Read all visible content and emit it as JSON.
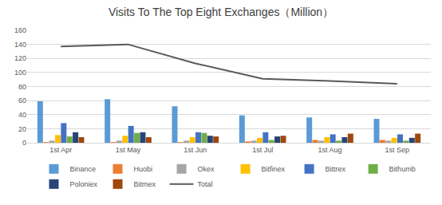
{
  "chart_data": {
    "type": "bar",
    "title": "Visits To The Top Eight Exchanges（Million）",
    "categories": [
      "1st Apr",
      "1st May",
      "1st Jun",
      "1st Jul",
      "1st Aug",
      "1st Sep"
    ],
    "series": [
      {
        "name": "Binance",
        "type": "bar",
        "color": "#5b9bd5",
        "values": [
          59,
          62,
          52,
          39,
          36,
          34
        ]
      },
      {
        "name": "Huobi",
        "type": "bar",
        "color": "#ed7d31",
        "values": [
          1,
          1,
          1,
          2,
          4,
          4
        ]
      },
      {
        "name": "Okex",
        "type": "bar",
        "color": "#a5a5a5",
        "values": [
          3,
          3,
          3,
          3,
          3,
          3
        ]
      },
      {
        "name": "Bitfinex",
        "type": "bar",
        "color": "#ffc000",
        "values": [
          11,
          10,
          8,
          7,
          8,
          7
        ]
      },
      {
        "name": "Bittrex",
        "type": "bar",
        "color": "#4472c4",
        "values": [
          28,
          24,
          15,
          15,
          12,
          12
        ]
      },
      {
        "name": "Bithumb",
        "type": "bar",
        "color": "#70ad47",
        "values": [
          9,
          14,
          14,
          4,
          3,
          3
        ]
      },
      {
        "name": "Poloniex",
        "type": "bar",
        "color": "#264478",
        "values": [
          15,
          15,
          10,
          9,
          8,
          7
        ]
      },
      {
        "name": "Bitmex",
        "type": "bar",
        "color": "#9e480e",
        "values": [
          8,
          8,
          9,
          10,
          13,
          13
        ]
      },
      {
        "name": "Total",
        "type": "line",
        "color": "#595959",
        "values": [
          137,
          140,
          113,
          91,
          88,
          84
        ]
      }
    ],
    "ylim": [
      0,
      160
    ],
    "yticks": [
      0,
      20,
      40,
      60,
      80,
      100,
      120,
      140,
      160
    ],
    "grid": true,
    "legend": "bottom"
  }
}
